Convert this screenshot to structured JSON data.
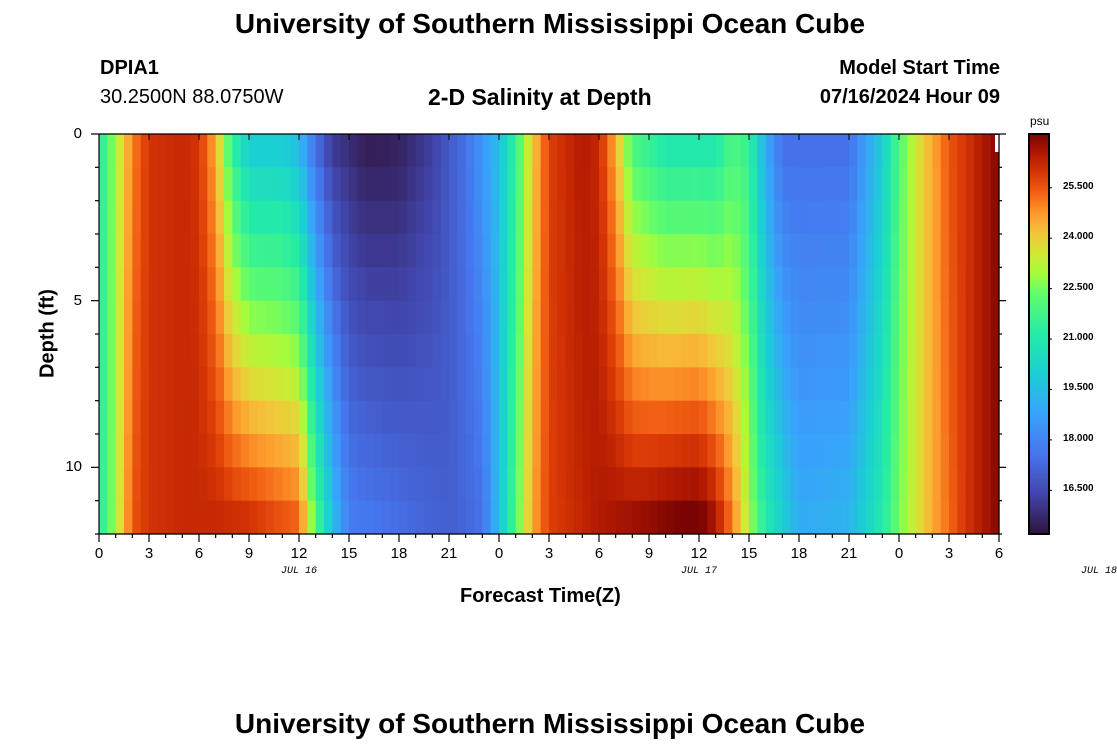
{
  "page": {
    "title_top": "University of Southern Mississippi Ocean Cube",
    "title_bottom": "University of Southern Mississippi Ocean Cube",
    "station_id": "DPIA1",
    "station_coords": "30.2500N  88.0750W",
    "chart_title": "2-D Salinity at Depth",
    "model_label": "Model Start Time",
    "model_time": "07/16/2024 Hour 09"
  },
  "chart_data": {
    "type": "heatmap",
    "title": "2-D Salinity at Depth",
    "xlabel": "Forecast Time(Z)",
    "ylabel": "Depth (ft)",
    "x_tick_labels": [
      "0",
      "3",
      "6",
      "9",
      "12",
      "15",
      "18",
      "21",
      "0",
      "3",
      "6",
      "9",
      "12",
      "15",
      "18",
      "21",
      "0",
      "3",
      "6"
    ],
    "x_date_labels": [
      "JUL 16",
      "JUL 17",
      "JUL 18"
    ],
    "x_range_hours": [
      0,
      54
    ],
    "y_tick_labels": [
      "0",
      "5",
      "10"
    ],
    "y_range_ft": [
      0,
      12
    ],
    "y_inverted": true,
    "colorbar": {
      "units": "psu",
      "ticks": [
        "25.500",
        "24.000",
        "22.500",
        "21.000",
        "19.500",
        "18.000",
        "16.500"
      ],
      "range": [
        15.2,
        27.1
      ]
    },
    "surface_salinity_by_hour": [
      [
        0,
        21.0
      ],
      [
        1,
        23.0
      ],
      [
        2,
        25.0
      ],
      [
        3,
        26.0
      ],
      [
        5,
        26.2
      ],
      [
        6,
        26.0
      ],
      [
        7,
        24.5
      ],
      [
        8,
        21.5
      ],
      [
        9,
        20.0
      ],
      [
        11,
        20.0
      ],
      [
        12,
        19.5
      ],
      [
        13,
        17.5
      ],
      [
        14,
        16.2
      ],
      [
        16,
        15.5
      ],
      [
        18,
        15.6
      ],
      [
        20,
        16.3
      ],
      [
        22,
        17.5
      ],
      [
        24,
        19.5
      ],
      [
        25,
        21.5
      ],
      [
        26,
        24.0
      ],
      [
        27,
        25.8
      ],
      [
        29,
        26.5
      ],
      [
        30,
        26.2
      ],
      [
        31,
        24.5
      ],
      [
        32,
        22.0
      ],
      [
        34,
        21.0
      ],
      [
        37,
        21.0
      ],
      [
        38,
        22.0
      ],
      [
        39,
        21.5
      ],
      [
        40,
        19.0
      ],
      [
        41,
        17.5
      ],
      [
        45,
        17.5
      ],
      [
        47,
        20.0
      ],
      [
        48,
        22.0
      ],
      [
        49,
        23.5
      ],
      [
        51,
        25.5
      ],
      [
        53,
        26.5
      ],
      [
        54,
        27.0
      ]
    ],
    "bottom_salinity_by_hour": [
      [
        0,
        21.0
      ],
      [
        1,
        23.0
      ],
      [
        2,
        25.5
      ],
      [
        3,
        26.0
      ],
      [
        5,
        26.2
      ],
      [
        7,
        26.2
      ],
      [
        9,
        26.0
      ],
      [
        11,
        25.5
      ],
      [
        12,
        25.3
      ],
      [
        13,
        22.0
      ],
      [
        14,
        19.5
      ],
      [
        15,
        17.8
      ],
      [
        21,
        17.0
      ],
      [
        23,
        17.5
      ],
      [
        24,
        19.5
      ],
      [
        25,
        22.0
      ],
      [
        26,
        24.5
      ],
      [
        27,
        25.8
      ],
      [
        30,
        26.5
      ],
      [
        33,
        26.8
      ],
      [
        34,
        27.0
      ],
      [
        36,
        27.2
      ],
      [
        37,
        26.5
      ],
      [
        38,
        25.0
      ],
      [
        39,
        23.0
      ],
      [
        40,
        21.0
      ],
      [
        42,
        19.0
      ],
      [
        45,
        19.2
      ],
      [
        47,
        21.0
      ],
      [
        48,
        22.5
      ],
      [
        50,
        24.5
      ],
      [
        52,
        26.0
      ],
      [
        54,
        27.0
      ]
    ]
  }
}
